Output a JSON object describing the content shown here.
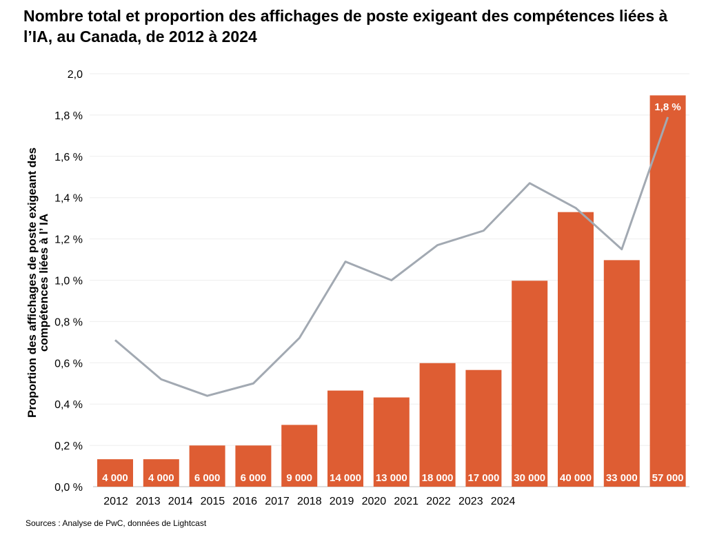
{
  "title": "Nombre total et proportion des affichages de poste exigeant des compétences liées à l’IA, au Canada, de 2012 à 2024",
  "source": "Sources : Analyse de PwC, données de Lightcast",
  "colors": {
    "bar": "#DE5D33",
    "line": "#A2A9B2",
    "grid": "#EDEDED",
    "axis": "#BBBBBB"
  },
  "chart_data": {
    "type": "bar",
    "categories": [
      "2012",
      "2013",
      "2014",
      "2015",
      "2016",
      "2017",
      "2018",
      "2019",
      "2020",
      "2021",
      "2022",
      "2023",
      "2024"
    ],
    "ylabel": "Proportion des affichages de poste exigeant des compétences liées à l’ IA",
    "ylim": [
      0,
      2.0
    ],
    "yticks": [
      "0,0 %",
      "0,2 %",
      "0,4 %",
      "0,6 %",
      "0,8 %",
      "1,0 %",
      "1,2 %",
      "1,4 %",
      "1,6 %",
      "1,8 %",
      "2,0"
    ],
    "grid": true,
    "series": [
      {
        "type": "bar",
        "values": [
          4000,
          4000,
          6000,
          6000,
          9000,
          14000,
          13000,
          18000,
          17000,
          30000,
          40000,
          33000,
          57000
        ],
        "labels": [
          "4 000",
          "4 000",
          "6 000",
          "6 000",
          "9 000",
          "14 000",
          "13 000",
          "18 000",
          "17 000",
          "30 000",
          "40 000",
          "33 000",
          "57 000"
        ]
      },
      {
        "type": "line",
        "values": [
          0.71,
          0.52,
          0.44,
          0.5,
          0.72,
          1.09,
          1.0,
          1.17,
          1.24,
          1.47,
          1.35,
          1.15,
          1.79
        ],
        "end_label": "1,8 %"
      }
    ]
  }
}
